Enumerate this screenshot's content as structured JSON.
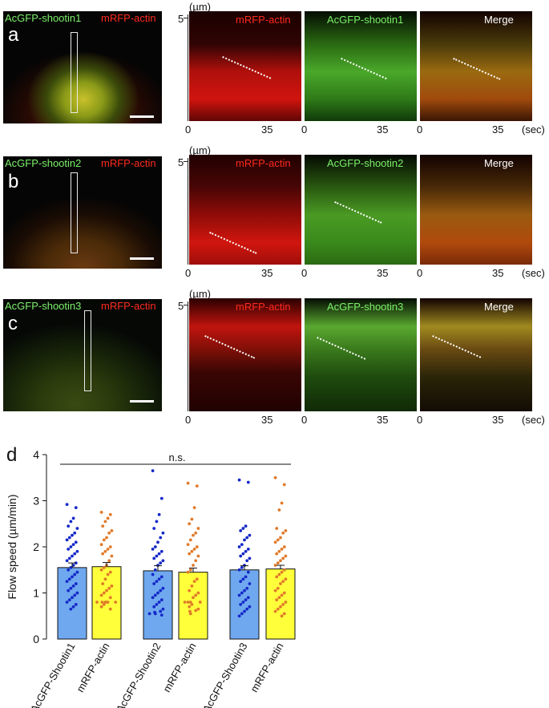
{
  "rows": [
    {
      "label": "a",
      "cell_title_green": "AcGFP-shootin1",
      "cell_title_red": "mRFP-actin",
      "kymo_titles": [
        "mRFP-actin",
        "AcGFP-shootin1",
        "Merge"
      ]
    },
    {
      "label": "b",
      "cell_title_green": "AcGFP-shootin2",
      "cell_title_red": "mRFP-actin",
      "kymo_titles": [
        "mRFP-actin",
        "AcGFP-shootin2",
        "Merge"
      ]
    },
    {
      "label": "c",
      "cell_title_green": "AcGFP-shootin3",
      "cell_title_red": "mRFP-actin",
      "kymo_titles": [
        "mRFP-actin",
        "AcGFP-shootin3",
        "Merge"
      ]
    }
  ],
  "kymo_axis": {
    "y_unit": "(µm)",
    "y_max_label": "5",
    "x_ticks": [
      "0",
      "35"
    ],
    "x_unit": "(sec)"
  },
  "panel_d": {
    "label": "d",
    "significance": "n.s.",
    "colors": {
      "shootin_bar": "#6fa8ef",
      "actin_bar": "#ffff3a",
      "shootin_dot": "#1428c8",
      "actin_dot": "#e07a2a"
    }
  },
  "chart_data": {
    "type": "bar",
    "ylabel": "Flow speed (µm/min)",
    "ylim": [
      0,
      4
    ],
    "yticks": [
      "0",
      "1",
      "2",
      "3",
      "4"
    ],
    "categories": [
      "AcGFP-Shootin1",
      "mRFP-actin",
      "AcGFP-Shootin2",
      "mRFP-actin",
      "AcGFP-Shootin3",
      "mRFP-actin"
    ],
    "values": [
      1.55,
      1.57,
      1.48,
      1.45,
      1.5,
      1.52
    ],
    "sem": [
      0.1,
      0.09,
      0.11,
      0.09,
      0.09,
      0.08
    ],
    "points": [
      [
        2.92,
        2.85,
        2.62,
        2.55,
        2.45,
        2.4,
        2.3,
        2.25,
        2.2,
        2.15,
        2.1,
        2.05,
        2.0,
        1.95,
        1.9,
        1.85,
        1.8,
        1.75,
        1.7,
        1.65,
        1.6,
        1.55,
        1.5,
        1.45,
        1.4,
        1.35,
        1.3,
        1.25,
        1.2,
        1.15,
        1.1,
        1.05,
        1.0,
        0.95,
        0.9,
        0.85,
        0.8,
        0.75,
        0.7,
        0.65
      ],
      [
        2.75,
        2.7,
        2.62,
        2.55,
        2.45,
        2.35,
        2.3,
        2.2,
        2.15,
        2.05,
        2.0,
        1.95,
        1.9,
        1.85,
        1.8,
        1.7,
        1.6,
        1.55,
        1.5,
        1.45,
        1.4,
        1.3,
        1.2,
        1.15,
        1.1,
        1.05,
        1.0,
        0.95,
        0.9,
        0.8,
        0.8,
        0.8,
        0.8,
        0.8,
        0.8,
        0.75,
        0.7,
        0.65
      ],
      [
        3.65,
        3.05,
        2.7,
        2.55,
        2.4,
        2.3,
        2.2,
        2.1,
        2.0,
        1.95,
        1.9,
        1.85,
        1.8,
        1.75,
        1.7,
        1.65,
        1.6,
        1.5,
        1.4,
        1.35,
        1.3,
        1.25,
        1.2,
        1.1,
        1.05,
        1.0,
        0.95,
        0.9,
        0.85,
        0.8,
        0.75,
        0.7,
        0.65,
        0.6,
        0.58,
        0.55,
        0.55,
        0.52
      ],
      [
        3.38,
        3.32,
        2.85,
        2.6,
        2.5,
        2.4,
        2.3,
        2.25,
        2.15,
        2.05,
        2.0,
        1.95,
        1.9,
        1.85,
        1.8,
        1.7,
        1.6,
        1.5,
        1.45,
        1.3,
        1.25,
        1.15,
        1.05,
        1.0,
        0.95,
        0.9,
        0.8,
        0.8,
        0.8,
        0.8,
        0.75,
        0.7,
        0.65,
        0.62,
        0.6,
        0.55
      ],
      [
        3.45,
        3.4,
        2.45,
        2.4,
        2.35,
        2.25,
        2.2,
        2.15,
        2.05,
        2.0,
        1.95,
        1.9,
        1.85,
        1.8,
        1.75,
        1.7,
        1.6,
        1.55,
        1.5,
        1.45,
        1.35,
        1.3,
        1.25,
        1.2,
        1.1,
        1.05,
        1.0,
        0.95,
        0.9,
        0.85,
        0.8,
        0.75,
        0.7,
        0.65,
        0.6,
        0.55,
        0.5
      ],
      [
        3.5,
        3.35,
        2.95,
        2.8,
        2.4,
        2.35,
        2.3,
        2.2,
        2.15,
        2.1,
        2.0,
        1.95,
        1.9,
        1.85,
        1.8,
        1.75,
        1.7,
        1.65,
        1.6,
        1.5,
        1.45,
        1.4,
        1.35,
        1.3,
        1.25,
        1.2,
        1.1,
        1.05,
        1.0,
        0.95,
        0.9,
        0.85,
        0.8,
        0.75,
        0.7,
        0.65,
        0.6,
        0.55,
        0.5
      ]
    ]
  }
}
